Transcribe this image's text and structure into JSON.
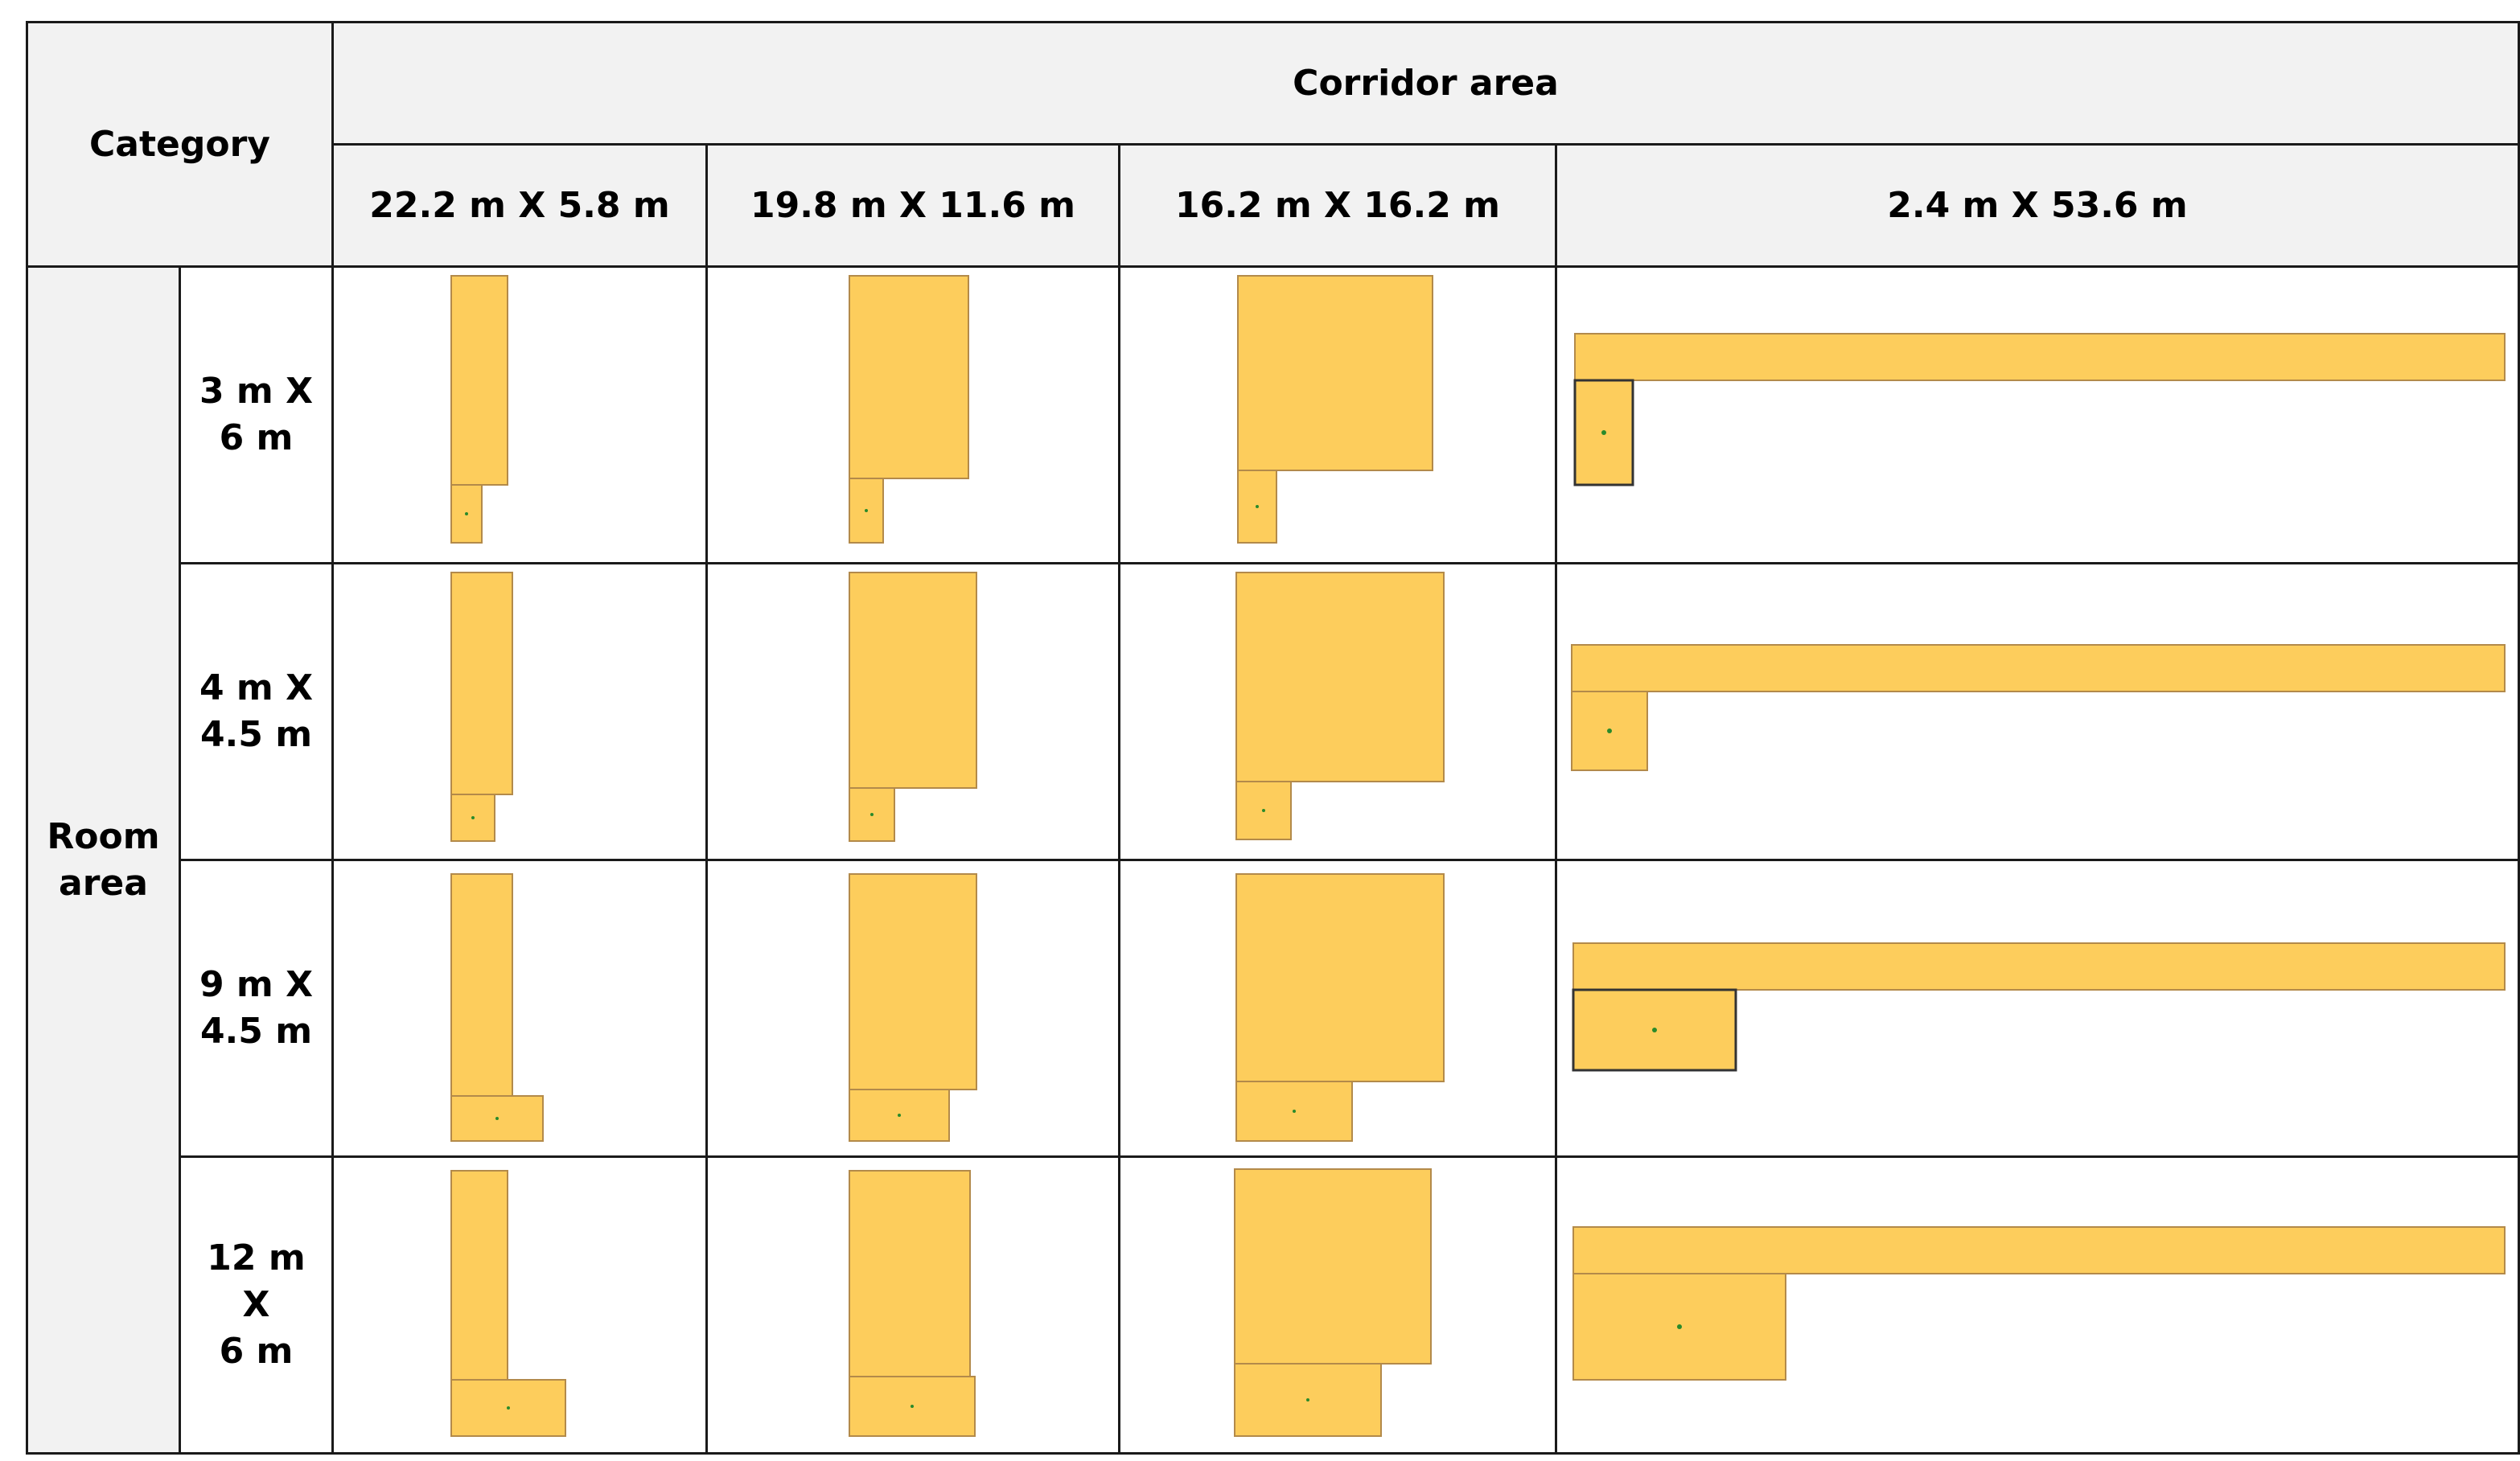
{
  "header": {
    "category": "Category",
    "corridor_area": "Corridor area",
    "room_area": "Room\narea",
    "columns": [
      "22.2 m X 5.8 m",
      "19.8 m X 11.6 m",
      "16.2 m X 16.2 m",
      "2.4 m X 53.6 m"
    ]
  },
  "rows": [
    {
      "label": "3 m X\n6 m"
    },
    {
      "label": "4 m X\n4.5 m"
    },
    {
      "label": "9 m X\n4.5 m"
    },
    {
      "label": "12 m\nX\n6 m"
    }
  ],
  "colors": {
    "fill": "#fdcd5c",
    "stroke": "#b38a4a",
    "marker": "#2a8a2a",
    "header_bg": "#f2f2f2",
    "border": "#1a1a1a"
  }
}
